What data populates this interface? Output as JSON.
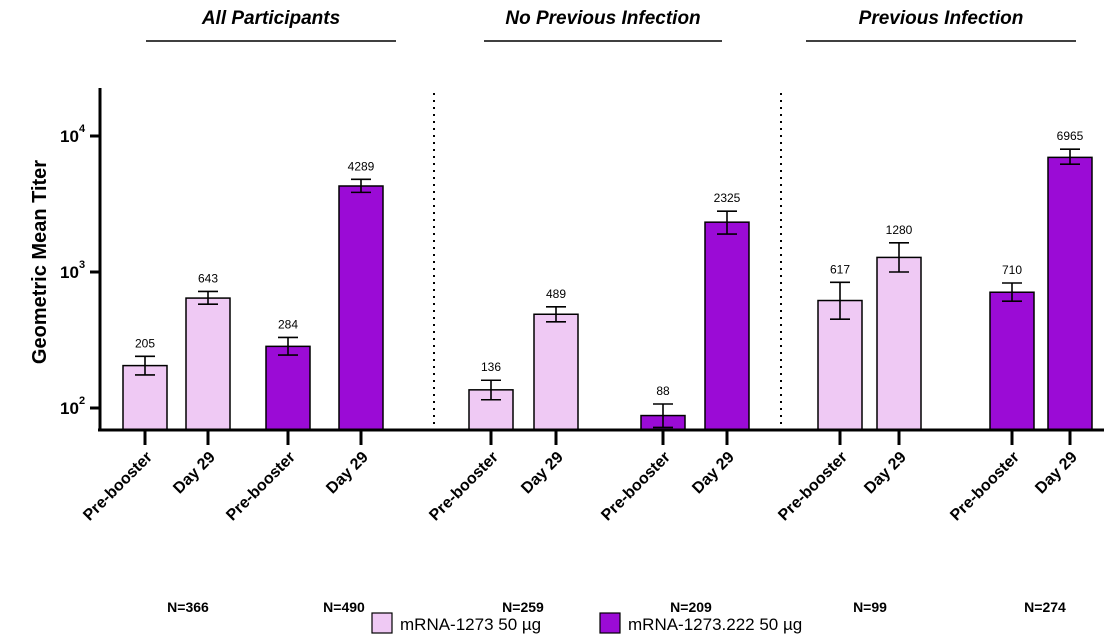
{
  "chart_data": {
    "type": "bar",
    "ylabel": "Geometric Mean Titer",
    "yscale": "log",
    "ylim": [
      80,
      14000
    ],
    "yticks": [
      {
        "value": 100,
        "base": "10",
        "exp": "2"
      },
      {
        "value": 1000,
        "base": "10",
        "exp": "3"
      },
      {
        "value": 10000,
        "base": "10",
        "exp": "4"
      }
    ],
    "panels": [
      {
        "title": "All Participants",
        "groups": [
          {
            "series": "mRNA-1273 50 µg",
            "n_label": "N=366",
            "bars": [
              {
                "category": "Pre-booster",
                "value": 205,
                "label": "205",
                "ci": [
                  175,
                  240
                ]
              },
              {
                "category": "Day 29",
                "value": 643,
                "label": "643",
                "ci": [
                  580,
                  720
                ]
              }
            ]
          },
          {
            "series": "mRNA-1273.222 50 µg",
            "n_label": "N=490",
            "bars": [
              {
                "category": "Pre-booster",
                "value": 284,
                "label": "284",
                "ci": [
                  245,
                  330
                ]
              },
              {
                "category": "Day 29",
                "value": 4289,
                "label": "4289",
                "ci": [
                  3850,
                  4800
                ]
              }
            ]
          }
        ]
      },
      {
        "title": "No Previous Infection",
        "groups": [
          {
            "series": "mRNA-1273 50 µg",
            "n_label": "N=259",
            "bars": [
              {
                "category": "Pre-booster",
                "value": 136,
                "label": "136",
                "ci": [
                  115,
                  160
                ]
              },
              {
                "category": "Day 29",
                "value": 489,
                "label": "489",
                "ci": [
                  430,
                  555
                ]
              }
            ]
          },
          {
            "series": "mRNA-1273.222 50 µg",
            "n_label": "N=209",
            "bars": [
              {
                "category": "Pre-booster",
                "value": 88,
                "label": "88",
                "ci": [
                  72,
                  107
                ]
              },
              {
                "category": "Day 29",
                "value": 2325,
                "label": "2325",
                "ci": [
                  1900,
                  2800
                ]
              }
            ]
          }
        ]
      },
      {
        "title": "Previous Infection",
        "groups": [
          {
            "series": "mRNA-1273 50 µg",
            "n_label": "N=99",
            "bars": [
              {
                "category": "Pre-booster",
                "value": 617,
                "label": "617",
                "ci": [
                  450,
                  840
                ]
              },
              {
                "category": "Day 29",
                "value": 1280,
                "label": "1280",
                "ci": [
                  1000,
                  1640
                ]
              }
            ]
          },
          {
            "series": "mRNA-1273.222 50 µg",
            "n_label": "N=274",
            "bars": [
              {
                "category": "Pre-booster",
                "value": 710,
                "label": "710",
                "ci": [
                  610,
                  830
                ]
              },
              {
                "category": "Day 29",
                "value": 6965,
                "label": "6965",
                "ci": [
                  6200,
                  8000
                ]
              }
            ]
          }
        ]
      }
    ],
    "legend": [
      {
        "name": "mRNA-1273 50 µg",
        "color": "#efc9f4"
      },
      {
        "name": "mRNA-1273.222 50 µg",
        "color": "#9b0bd6"
      }
    ],
    "legend_position": "bottom-center",
    "grid": false
  }
}
